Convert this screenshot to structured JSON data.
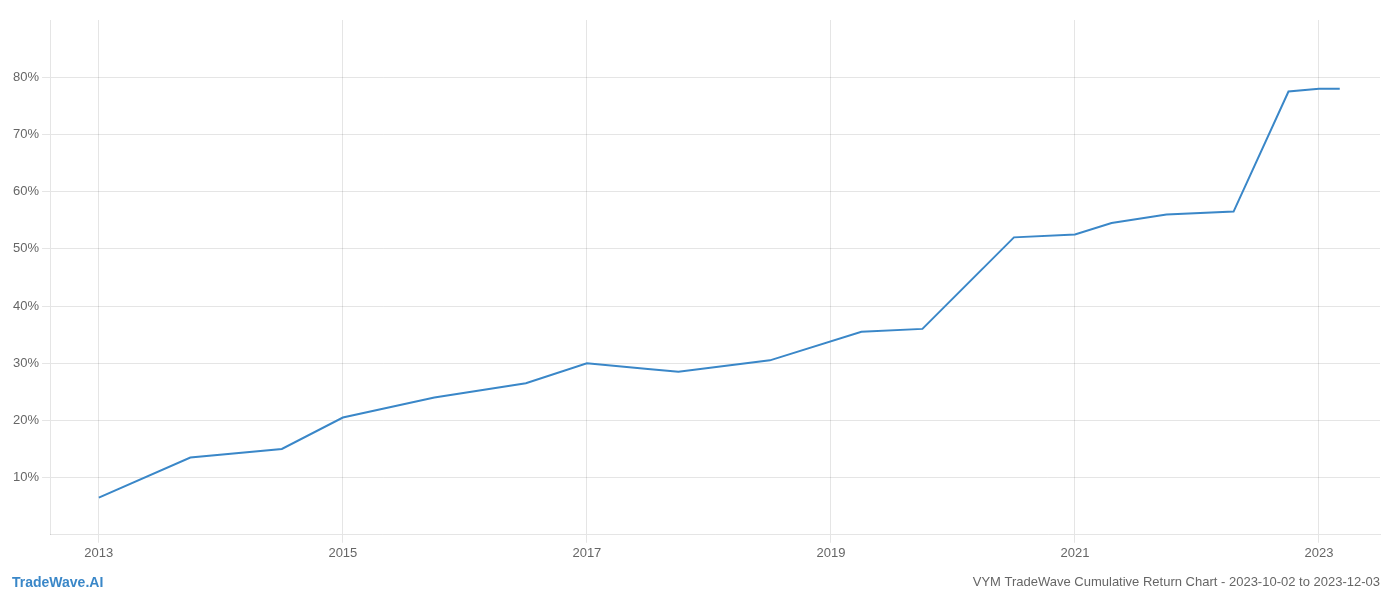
{
  "chart_data": {
    "type": "line",
    "title": "VYM TradeWave Cumulative Return Chart - 2023-10-02 to 2023-12-03",
    "annotations": [
      {
        "text": "TradeWave.AI",
        "color": "#3a87c8"
      }
    ],
    "x": [
      2013.0,
      2013.75,
      2014.5,
      2015.0,
      2015.75,
      2016.5,
      2017.0,
      2017.5,
      2017.75,
      2018.5,
      2019.25,
      2019.75,
      2020.5,
      2021.0,
      2021.3,
      2021.75,
      2022.3,
      2022.75,
      2023.0,
      2023.17
    ],
    "values": [
      6.5,
      13.5,
      15.0,
      20.5,
      24.0,
      26.5,
      30.0,
      29.0,
      28.5,
      30.5,
      35.5,
      36.0,
      52.0,
      52.5,
      54.5,
      56.0,
      56.5,
      77.5,
      78.0,
      78.0
    ],
    "color": "#3a87c8",
    "xlim": [
      2012.6,
      2023.5
    ],
    "ylim": [
      0,
      90
    ],
    "xticks": [
      2013,
      2015,
      2017,
      2019,
      2021,
      2023
    ],
    "yticks": [
      {
        "value": 10,
        "label": "10%"
      },
      {
        "value": 20,
        "label": "20%"
      },
      {
        "value": 30,
        "label": "30%"
      },
      {
        "value": 40,
        "label": "40%"
      },
      {
        "value": 50,
        "label": "50%"
      },
      {
        "value": 60,
        "label": "60%"
      },
      {
        "value": 70,
        "label": "70%"
      },
      {
        "value": 80,
        "label": "80%"
      }
    ],
    "grid": true
  }
}
